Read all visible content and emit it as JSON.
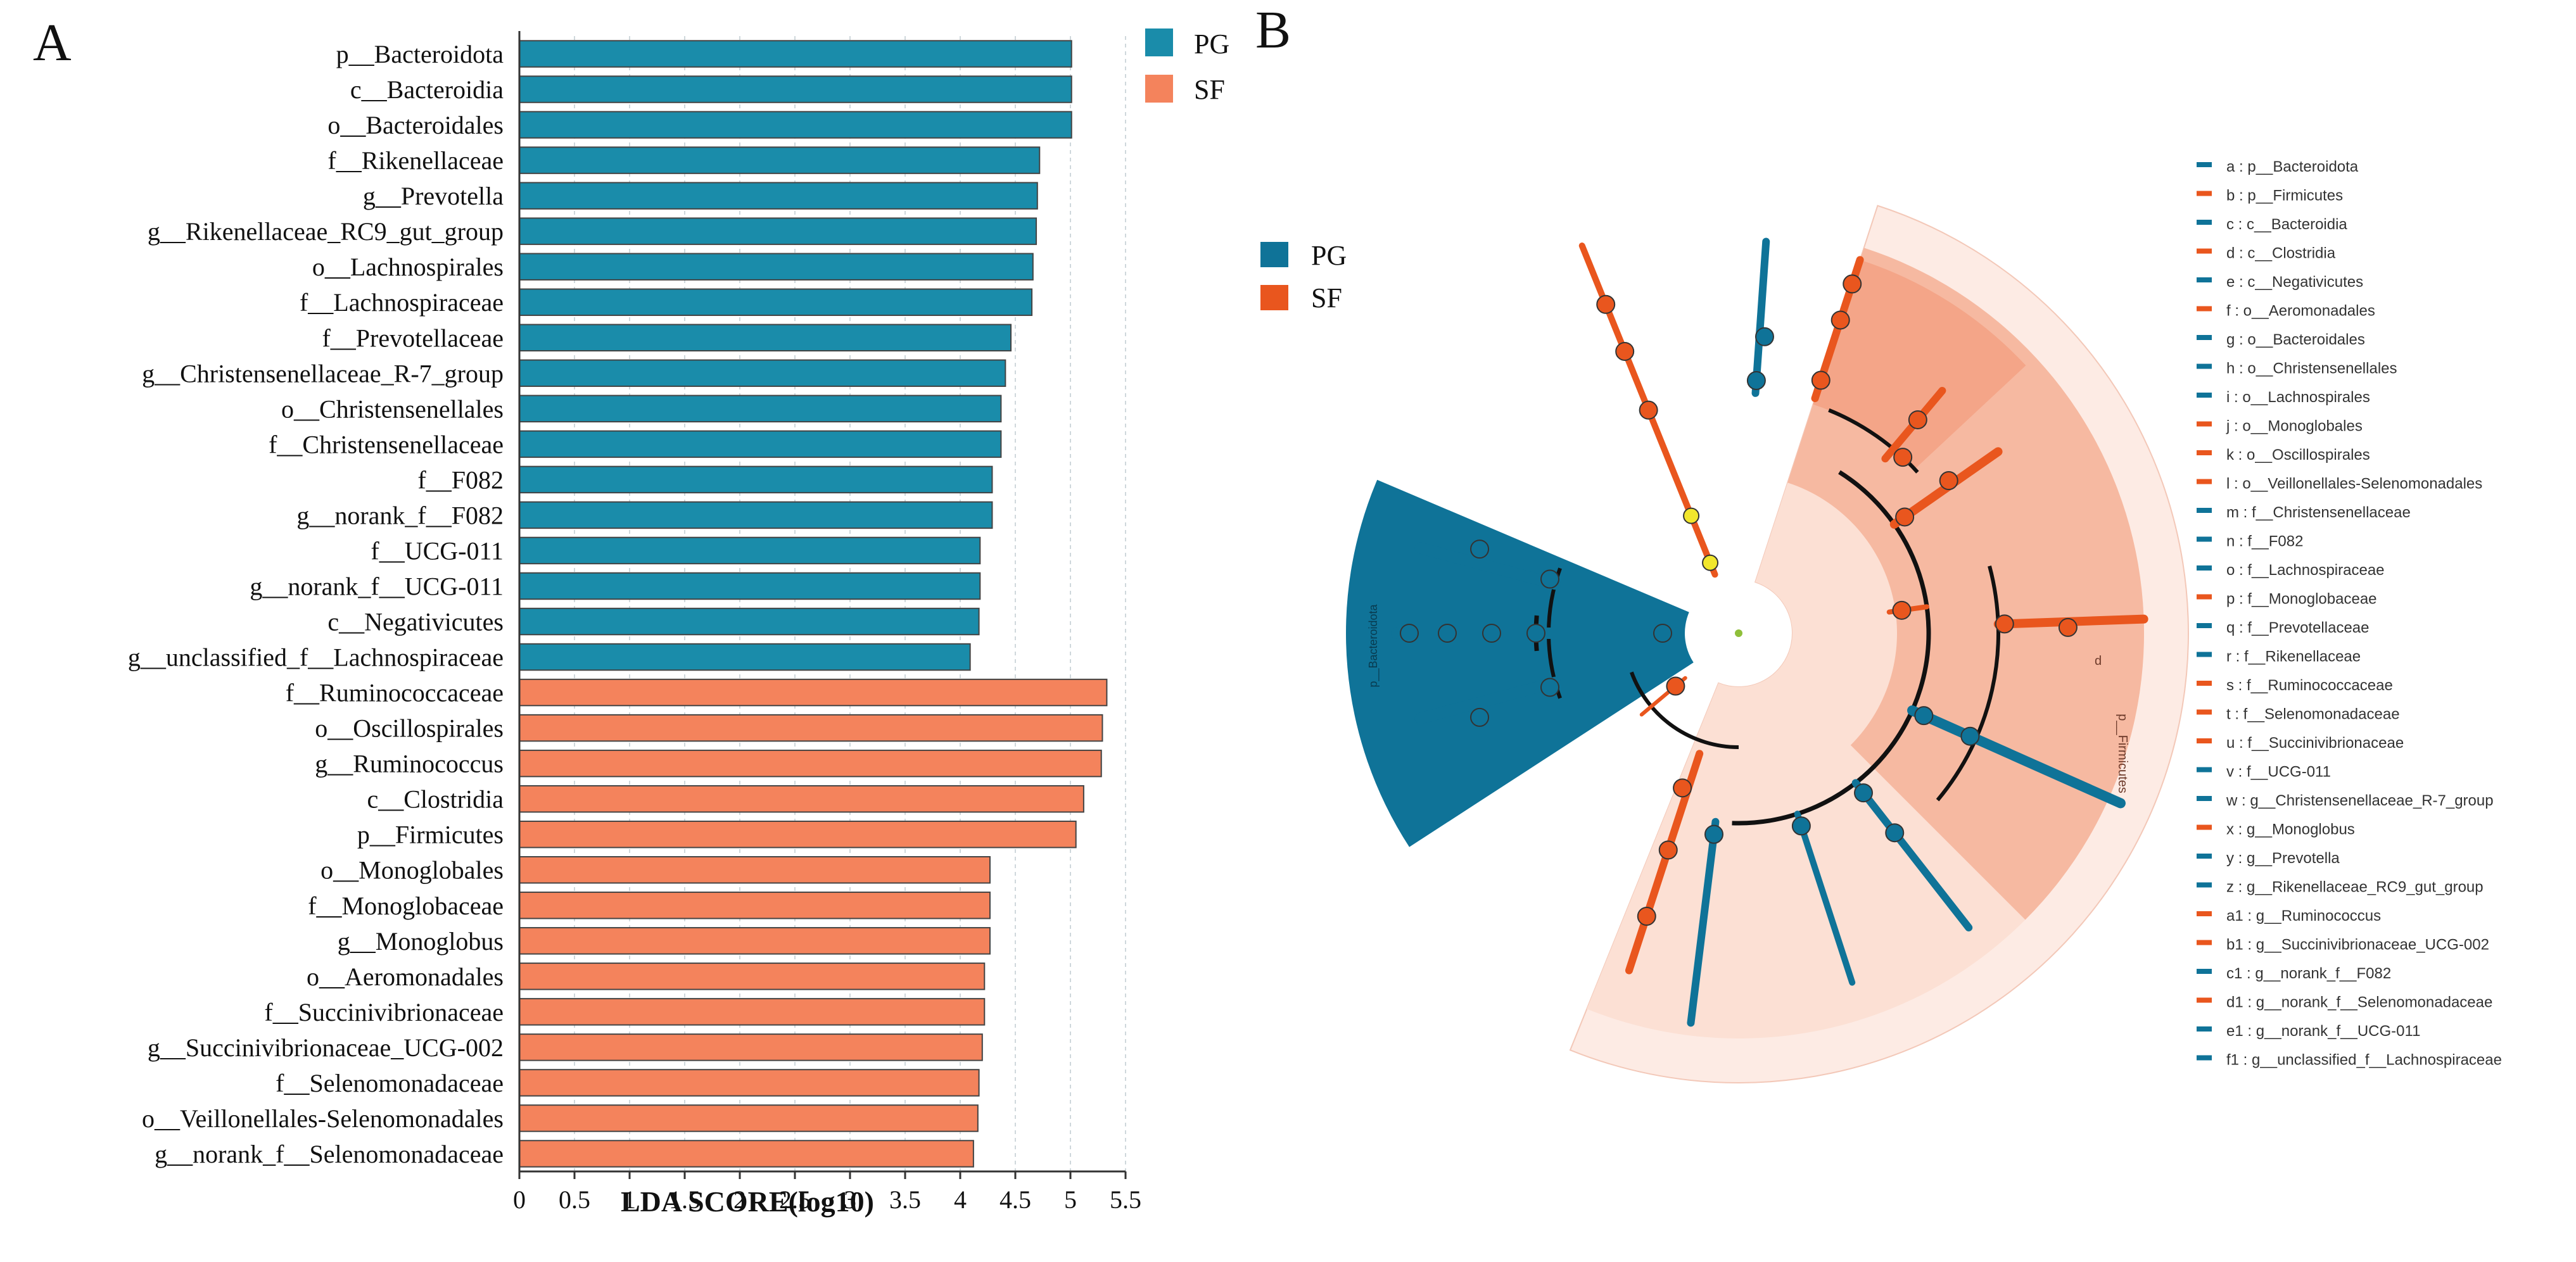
{
  "panels": {
    "a_label": "A",
    "b_label": "B"
  },
  "colors": {
    "pg": "#1A8CAA",
    "sf": "#F4835C",
    "pg_clado": "#0F7398",
    "sf_clado": "#E9561E",
    "grid": "#cfd8dc",
    "bar_border": "#444444"
  },
  "chart_data": [
    {
      "type": "bar",
      "orientation": "horizontal",
      "xlabel": "LDA SCORE(log10)",
      "ylabel": "",
      "xlim": [
        0,
        5.5
      ],
      "xticks": [
        "0",
        "0.5",
        "1",
        "1.5",
        "2",
        "2.5",
        "3",
        "3.5",
        "4",
        "4.5",
        "5",
        "5.5"
      ],
      "legend": [
        {
          "name": "PG",
          "color": "#1A8CAA"
        },
        {
          "name": "SF",
          "color": "#F4835C"
        }
      ],
      "categories": [
        "p__Bacteroidota",
        "c__Bacteroidia",
        "o__Bacteroidales",
        "f__Rikenellaceae",
        "g__Prevotella",
        "g__Rikenellaceae_RC9_gut_group",
        "o__Lachnospirales",
        "f__Lachnospiraceae",
        "f__Prevotellaceae",
        "g__Christensenellaceae_R-7_group",
        "o__Christensenellales",
        "f__Christensenellaceae",
        "f__F082",
        "g__norank_f__F082",
        "f__UCG-011",
        "g__norank_f__UCG-011",
        "c__Negativicutes",
        "g__unclassified_f__Lachnospiraceae",
        "f__Ruminococcaceae",
        "o__Oscillospirales",
        "g__Ruminococcus",
        "c__Clostridia",
        "p__Firmicutes",
        "o__Monoglobales",
        "f__Monoglobaceae",
        "g__Monoglobus",
        "o__Aeromonadales",
        "f__Succinivibrionaceae",
        "g__Succinivibrionaceae_UCG-002",
        "f__Selenomonadaceae",
        "o__Veillonellales-Selenomonadales",
        "g__norank_f__Selenomonadaceae"
      ],
      "values": [
        5.01,
        5.01,
        5.01,
        4.72,
        4.7,
        4.69,
        4.66,
        4.65,
        4.46,
        4.41,
        4.37,
        4.37,
        4.29,
        4.29,
        4.18,
        4.18,
        4.17,
        4.09,
        5.33,
        5.29,
        5.28,
        5.12,
        5.05,
        4.27,
        4.27,
        4.27,
        4.22,
        4.22,
        4.2,
        4.17,
        4.16,
        4.12
      ],
      "groups": [
        "PG",
        "PG",
        "PG",
        "PG",
        "PG",
        "PG",
        "PG",
        "PG",
        "PG",
        "PG",
        "PG",
        "PG",
        "PG",
        "PG",
        "PG",
        "PG",
        "PG",
        "PG",
        "SF",
        "SF",
        "SF",
        "SF",
        "SF",
        "SF",
        "SF",
        "SF",
        "SF",
        "SF",
        "SF",
        "SF",
        "SF",
        "SF"
      ]
    },
    {
      "type": "cladogram",
      "legend": [
        {
          "name": "PG",
          "color": "#0F7398"
        },
        {
          "name": "SF",
          "color": "#E9561E"
        }
      ],
      "sector_labels": {
        "pg": "p__Bacteroidota",
        "sf": "p__Firmicutes",
        "outer_letter": "d"
      },
      "key": [
        {
          "code": "a",
          "taxon": "p__Bacteroidota",
          "group": "PG"
        },
        {
          "code": "b",
          "taxon": "p__Firmicutes",
          "group": "SF"
        },
        {
          "code": "c",
          "taxon": "c__Bacteroidia",
          "group": "PG"
        },
        {
          "code": "d",
          "taxon": "c__Clostridia",
          "group": "SF"
        },
        {
          "code": "e",
          "taxon": "c__Negativicutes",
          "group": "PG"
        },
        {
          "code": "f",
          "taxon": "o__Aeromonadales",
          "group": "SF"
        },
        {
          "code": "g",
          "taxon": "o__Bacteroidales",
          "group": "PG"
        },
        {
          "code": "h",
          "taxon": "o__Christensenellales",
          "group": "PG"
        },
        {
          "code": "i",
          "taxon": "o__Lachnospirales",
          "group": "PG"
        },
        {
          "code": "j",
          "taxon": "o__Monoglobales",
          "group": "SF"
        },
        {
          "code": "k",
          "taxon": "o__Oscillospirales",
          "group": "SF"
        },
        {
          "code": "l",
          "taxon": "o__Veillonellales-Selenomonadales",
          "group": "SF"
        },
        {
          "code": "m",
          "taxon": "f__Christensenellaceae",
          "group": "PG"
        },
        {
          "code": "n",
          "taxon": "f__F082",
          "group": "PG"
        },
        {
          "code": "o",
          "taxon": "f__Lachnospiraceae",
          "group": "PG"
        },
        {
          "code": "p",
          "taxon": "f__Monoglobaceae",
          "group": "SF"
        },
        {
          "code": "q",
          "taxon": "f__Prevotellaceae",
          "group": "PG"
        },
        {
          "code": "r",
          "taxon": "f__Rikenellaceae",
          "group": "PG"
        },
        {
          "code": "s",
          "taxon": "f__Ruminococcaceae",
          "group": "SF"
        },
        {
          "code": "t",
          "taxon": "f__Selenomonadaceae",
          "group": "SF"
        },
        {
          "code": "u",
          "taxon": "f__Succinivibrionaceae",
          "group": "SF"
        },
        {
          "code": "v",
          "taxon": "f__UCG-011",
          "group": "PG"
        },
        {
          "code": "w",
          "taxon": "g__Christensenellaceae_R-7_group",
          "group": "PG"
        },
        {
          "code": "x",
          "taxon": "g__Monoglobus",
          "group": "SF"
        },
        {
          "code": "y",
          "taxon": "g__Prevotella",
          "group": "PG"
        },
        {
          "code": "z",
          "taxon": "g__Rikenellaceae_RC9_gut_group",
          "group": "PG"
        },
        {
          "code": "a1",
          "taxon": "g__Ruminococcus",
          "group": "SF"
        },
        {
          "code": "b1",
          "taxon": "g__Succinivibrionaceae_UCG-002",
          "group": "SF"
        },
        {
          "code": "c1",
          "taxon": "g__norank_f__F082",
          "group": "PG"
        },
        {
          "code": "d1",
          "taxon": "g__norank_f__Selenomonadaceae",
          "group": "SF"
        },
        {
          "code": "e1",
          "taxon": "g__norank_f__UCG-011",
          "group": "PG"
        },
        {
          "code": "f1",
          "taxon": "g__unclassified_f__Lachnospiraceae",
          "group": "PG"
        }
      ]
    }
  ]
}
